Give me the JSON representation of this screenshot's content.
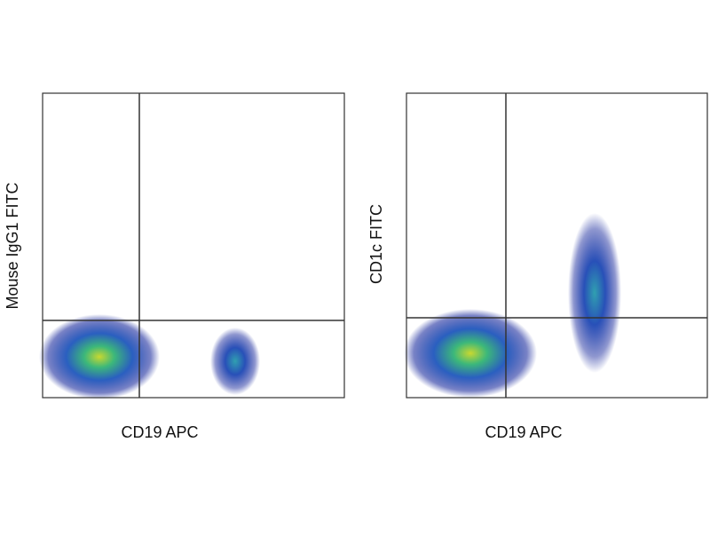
{
  "panels": [
    {
      "x_label": "CD19 APC",
      "y_label": "Mouse IgG1 FITC"
    },
    {
      "x_label": "CD19 APC",
      "y_label": "CD1c FITC"
    }
  ]
}
